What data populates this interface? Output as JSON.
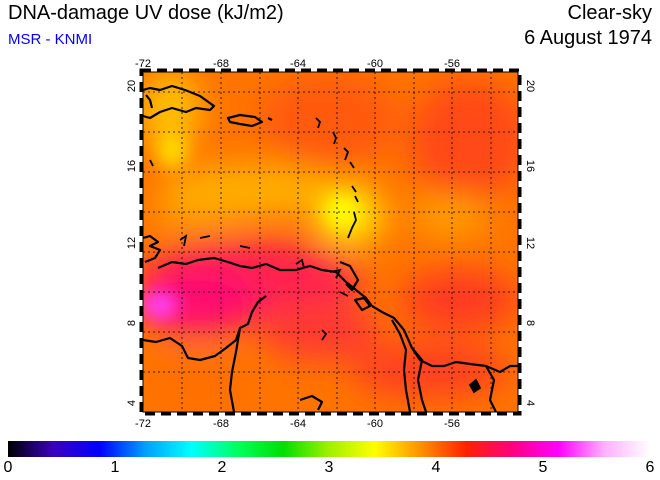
{
  "header": {
    "title": "DNA-damage UV dose (kJ/m2)",
    "subtitle": "MSR - KNMI",
    "sky_condition": "Clear-sky",
    "date": "6 August 1974"
  },
  "map": {
    "lon_range": [
      -72,
      -52.5
    ],
    "lat_range": [
      3.5,
      20.5
    ],
    "lon_ticks": [
      "-72",
      "-68",
      "-64",
      "-60",
      "-56"
    ],
    "lat_ticks": [
      "20",
      "16",
      "12",
      "8",
      "4"
    ],
    "grid": true,
    "colors": {
      "coastline": "#000000",
      "field_low": "#ffd000",
      "field_mid": "#ff6a00",
      "field_high": "#ff1060",
      "field_peak": "#ff40ff"
    }
  },
  "colorbar": {
    "min": 0,
    "max": 6,
    "labels": [
      "0",
      "1",
      "2",
      "3",
      "4",
      "5",
      "6"
    ],
    "stops": [
      "#000000",
      "#3a00c0",
      "#0000ff",
      "#00a0ff",
      "#00ffff",
      "#00ff60",
      "#00e000",
      "#a0f000",
      "#ffff00",
      "#ff9000",
      "#ff2000",
      "#ff0080",
      "#ff00ff",
      "#ffb0ff",
      "#ffffff"
    ]
  }
}
